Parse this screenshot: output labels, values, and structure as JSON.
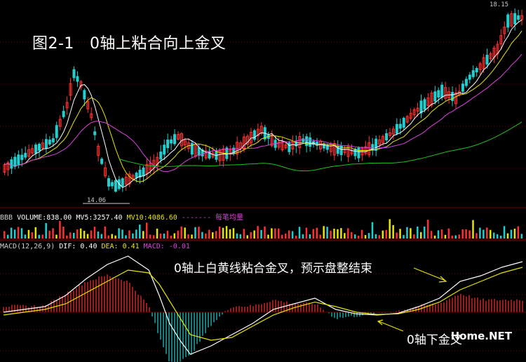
{
  "title": {
    "figure": "图2-1",
    "text": "0轴上粘合向上金叉"
  },
  "price_panel": {
    "high_label": "18.15",
    "low_label": "14.06",
    "ma_colors": {
      "ma5": "#ffffff",
      "ma10": "#e6e600",
      "ma20": "#e040e0",
      "ma60": "#20c020"
    }
  },
  "volume_panel": {
    "label_prefix": "BBB",
    "volume": "VOLUME:838.00",
    "mv5": "MV5:3257.40",
    "mv10": "MV10:4086.60",
    "legend": "------- 每笔均量",
    "colors": {
      "volume": "#ffffff",
      "mv5": "#ffffff",
      "mv10": "#e6e600",
      "legend": "#e040e0"
    }
  },
  "macd_panel": {
    "params": "MACD(12,26,9)",
    "dif": "DIF: 0.40",
    "dea": "DEA: 0.41",
    "macd": "MACD: -0.01",
    "colors": {
      "dif": "#ffffff",
      "dea": "#e6e600",
      "macd": "#e040e0"
    },
    "annotation_top": "0轴上白黄线粘合金叉，预示盘整结束",
    "annotation_bottom": "0轴下金叉"
  },
  "watermark": "Home.NET",
  "chart_data": {
    "type": "line",
    "series": [
      {
        "name": "DIF",
        "color": "#ffffff",
        "x": [
          0,
          4,
          8,
          12,
          16,
          20,
          24,
          28,
          30,
          32,
          34,
          36,
          40,
          44,
          48,
          52,
          56,
          60,
          64,
          68,
          72,
          76,
          80,
          84,
          88,
          92,
          96,
          100
        ],
        "values": [
          0,
          0.05,
          0.1,
          0.3,
          0.6,
          0.85,
          1.0,
          0.75,
          0.3,
          -0.2,
          -0.5,
          -0.75,
          -0.6,
          -0.4,
          -0.2,
          0.05,
          0.15,
          0.25,
          0.05,
          -0.03,
          -0.05,
          -0.02,
          0.1,
          0.25,
          0.55,
          0.65,
          0.8,
          0.9
        ]
      },
      {
        "name": "DEA",
        "color": "#e6e600",
        "x": [
          0,
          4,
          8,
          12,
          16,
          20,
          24,
          28,
          30,
          32,
          34,
          36,
          40,
          44,
          48,
          52,
          56,
          60,
          64,
          68,
          72,
          76,
          80,
          84,
          88,
          92,
          96,
          100
        ],
        "values": [
          -0.05,
          0.0,
          0.05,
          0.15,
          0.35,
          0.55,
          0.75,
          0.7,
          0.5,
          0.2,
          -0.1,
          -0.4,
          -0.5,
          -0.45,
          -0.25,
          -0.05,
          0.08,
          0.18,
          0.1,
          0.0,
          -0.04,
          -0.03,
          0.05,
          0.18,
          0.4,
          0.55,
          0.7,
          0.8
        ]
      }
    ]
  }
}
